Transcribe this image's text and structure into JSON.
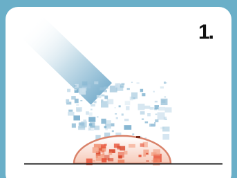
{
  "label": "1."
}
